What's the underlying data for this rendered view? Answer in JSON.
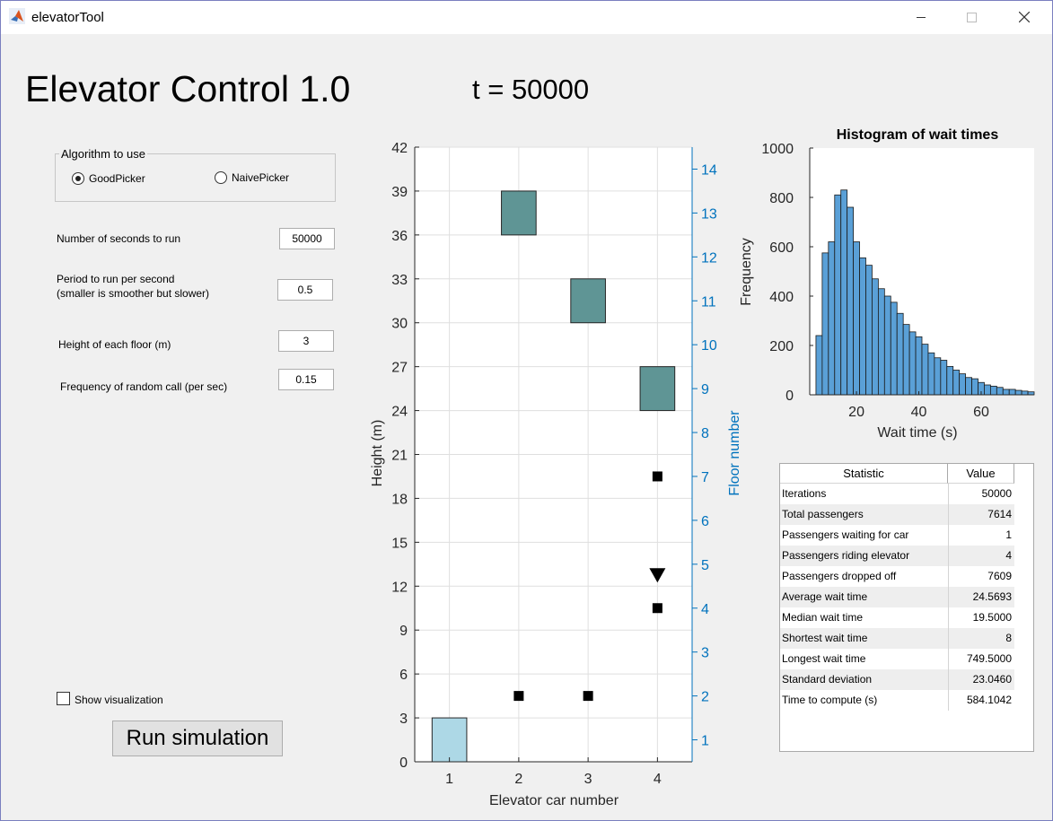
{
  "window": {
    "title": "elevatorTool"
  },
  "header": {
    "app_title": "Elevator Control 1.0",
    "time_label": "t = 50000"
  },
  "algorithm": {
    "legend": "Algorithm to use",
    "options": [
      {
        "label": "GoodPicker",
        "selected": true
      },
      {
        "label": "NaivePicker",
        "selected": false
      }
    ]
  },
  "params": {
    "seconds_label": "Number of seconds to run",
    "seconds_value": "50000",
    "period_label_line1": "Period to run per second",
    "period_label_line2": "(smaller is smoother but slower)",
    "period_value": "0.5",
    "floor_height_label": "Height of each floor (m)",
    "floor_height_value": "3",
    "freq_label": "Frequency of random call (per sec)",
    "freq_value": "0.15"
  },
  "controls": {
    "show_viz_label": "Show visualization",
    "show_viz_checked": false,
    "run_label": "Run simulation"
  },
  "colors": {
    "car": "#5f9595",
    "car_ground": "#add8e6",
    "hist_bar": "#5aa0d7",
    "floor_axis": "#0072bd"
  },
  "main_chart": {
    "type": "scatter",
    "xlabel": "Elevator car number",
    "ylabel": "Height (m)",
    "y2label": "Floor number",
    "xticks": [
      "1",
      "2",
      "3",
      "4"
    ],
    "yticks": [
      "0",
      "3",
      "6",
      "9",
      "12",
      "15",
      "18",
      "21",
      "24",
      "27",
      "30",
      "33",
      "36",
      "39",
      "42"
    ],
    "y2ticks": [
      "1",
      "2",
      "3",
      "4",
      "5",
      "6",
      "7",
      "8",
      "9",
      "10",
      "11",
      "12",
      "13",
      "14"
    ],
    "xlim": [
      0.5,
      4.5
    ],
    "ylim": [
      0,
      42
    ],
    "cars": [
      {
        "car": 1,
        "bottom": 0,
        "top": 3
      },
      {
        "car": 2,
        "bottom": 36,
        "top": 39
      },
      {
        "car": 3,
        "bottom": 30,
        "top": 33
      },
      {
        "car": 4,
        "bottom": 24,
        "top": 27
      }
    ],
    "squares": [
      {
        "x": 2,
        "y": 4.5
      },
      {
        "x": 3,
        "y": 4.5
      },
      {
        "x": 4,
        "y": 10.5
      },
      {
        "x": 4,
        "y": 19.5
      }
    ],
    "triangles": [
      {
        "x": 4,
        "y": 12.8
      }
    ]
  },
  "chart_data": {
    "type": "bar",
    "title": "Histogram of wait times",
    "xlabel": "Wait time (s)",
    "ylabel": "Frequency",
    "xticks": [
      "20",
      "40",
      "60"
    ],
    "yticks": [
      "0",
      "200",
      "400",
      "600",
      "800",
      "1000"
    ],
    "xlim": [
      5,
      77
    ],
    "ylim": [
      0,
      1000
    ],
    "bin_start": 7,
    "bin_width": 2,
    "values": [
      240,
      575,
      620,
      810,
      830,
      760,
      620,
      555,
      525,
      470,
      430,
      400,
      375,
      330,
      285,
      255,
      235,
      205,
      170,
      150,
      140,
      115,
      100,
      85,
      70,
      65,
      50,
      40,
      35,
      30,
      22,
      22,
      18,
      15,
      12
    ],
    "grid": false
  },
  "stats": {
    "headers": [
      "Statistic",
      "Value"
    ],
    "rows": [
      [
        "Iterations",
        "50000"
      ],
      [
        "Total passengers",
        "7614"
      ],
      [
        "Passengers waiting for car",
        "1"
      ],
      [
        "Passengers riding elevator",
        "4"
      ],
      [
        "Passengers dropped off",
        "7609"
      ],
      [
        "Average wait time",
        "24.5693"
      ],
      [
        "Median wait time",
        "19.5000"
      ],
      [
        "Shortest wait time",
        "8"
      ],
      [
        "Longest wait time",
        "749.5000"
      ],
      [
        "Standard deviation",
        "23.0460"
      ],
      [
        "Time to compute (s)",
        "584.1042"
      ]
    ]
  }
}
